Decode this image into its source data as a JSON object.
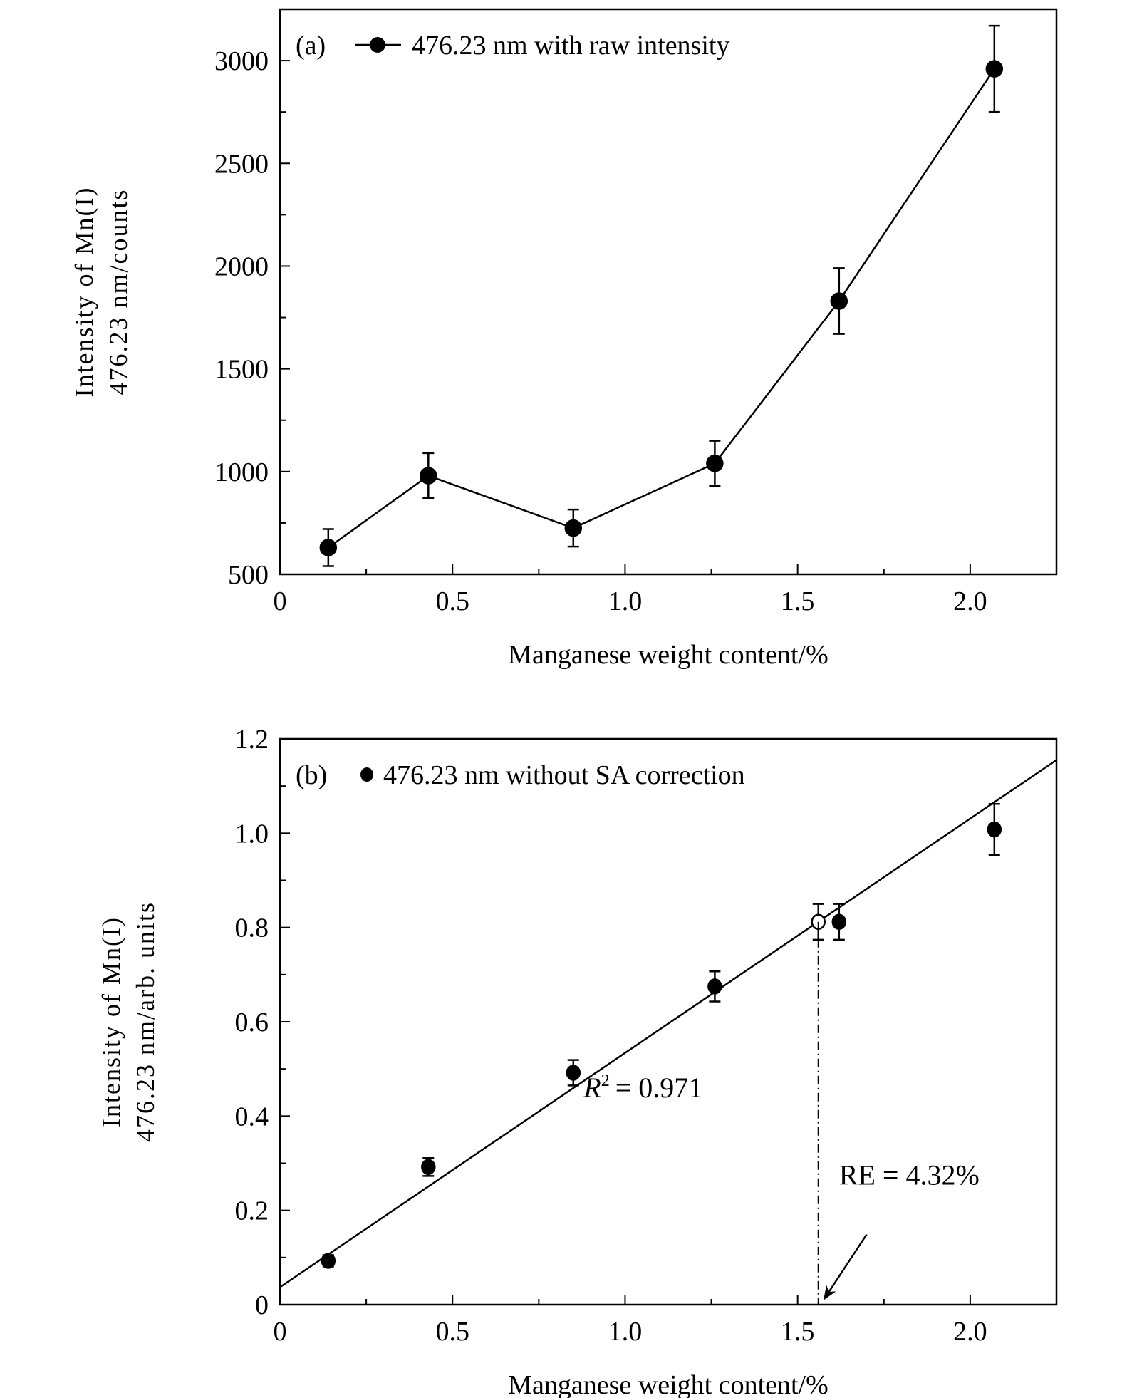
{
  "chart_data": [
    {
      "type": "line",
      "panel_label": "(a)",
      "legend": "476.23 nm with raw intensity",
      "legend_placement": "top-left",
      "xlabel": "Manganese weight content/%",
      "ylabel_line1": "Intensity of Mn(I)",
      "ylabel_line2": "476.23 nm/counts",
      "xlim": [
        0,
        2.25
      ],
      "ylim": [
        500,
        3250
      ],
      "xticks": [
        0,
        0.5,
        1.0,
        1.5,
        2.0
      ],
      "xtick_labels": [
        "0",
        "0.5",
        "1.0",
        "1.5",
        "2.0"
      ],
      "yticks": [
        500,
        1000,
        1500,
        2000,
        2500,
        3000
      ],
      "ytick_labels": [
        "500",
        "1000",
        "1500",
        "2000",
        "2500",
        "3000"
      ],
      "grid": false,
      "series": [
        {
          "name": "476.23 nm with raw intensity",
          "x": [
            0.14,
            0.43,
            0.85,
            1.26,
            1.62,
            2.07
          ],
          "y": [
            630,
            980,
            725,
            1040,
            1830,
            2960
          ],
          "err": [
            90,
            110,
            90,
            110,
            160,
            210
          ]
        }
      ]
    },
    {
      "type": "scatter",
      "panel_label": "(b)",
      "legend": "476.23 nm without SA correction",
      "legend_placement": "top-left",
      "xlabel": "Manganese weight content/%",
      "ylabel_line1": "Intensity of Mn(I)",
      "ylabel_line2": "476.23 nm/arb. units",
      "xlim": [
        0,
        2.25
      ],
      "ylim": [
        0,
        1.2
      ],
      "xticks": [
        0,
        0.5,
        1.0,
        1.5,
        2.0
      ],
      "xtick_labels": [
        "0",
        "0.5",
        "1.0",
        "1.5",
        "2.0"
      ],
      "yticks": [
        0,
        0.2,
        0.4,
        0.6,
        0.8,
        1.0,
        1.2
      ],
      "ytick_labels": [
        "0",
        "0.2",
        "0.4",
        "0.6",
        "0.8",
        "1.0",
        "1.2"
      ],
      "grid": false,
      "series": [
        {
          "name": "476.23 nm without SA correction",
          "x": [
            0.14,
            0.43,
            0.85,
            1.26,
            1.62,
            2.07
          ],
          "y": [
            0.093,
            0.292,
            0.492,
            0.675,
            0.812,
            1.008
          ],
          "err": [
            0.012,
            0.019,
            0.027,
            0.032,
            0.038,
            0.054
          ]
        },
        {
          "name": "predicted (open)",
          "x": [
            1.56
          ],
          "y": [
            0.812
          ],
          "err": [
            0.038
          ]
        }
      ],
      "fit": {
        "intercept": 0.037,
        "slope": 0.497,
        "r2_label": "R",
        "r2_sup": "2",
        "r2_value": "= 0.971"
      },
      "annotation": {
        "text": "RE = 4.32%",
        "drop_x": 1.56,
        "arrow_from": [
          1.7,
          0.149
        ],
        "arrow_to": [
          1.577,
          0.012
        ]
      }
    }
  ]
}
